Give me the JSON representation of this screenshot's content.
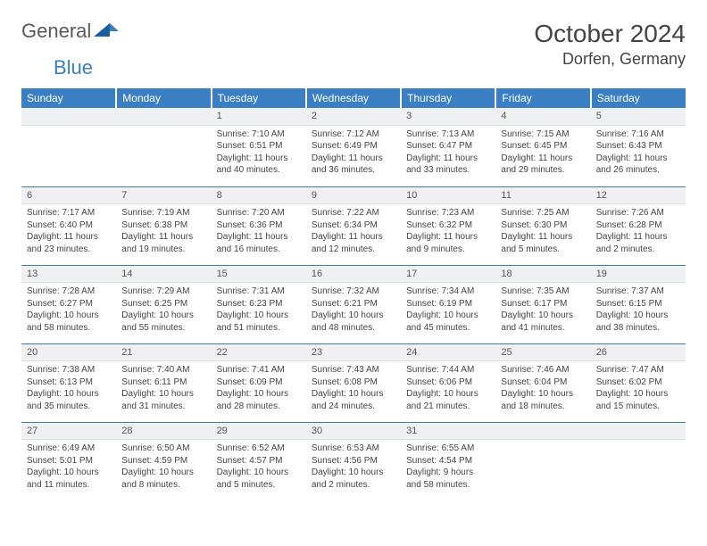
{
  "brand": {
    "part1": "General",
    "part2": "Blue"
  },
  "header": {
    "title": "October 2024",
    "location": "Dorfen, Germany"
  },
  "style": {
    "accent": "#3a7fc4",
    "header_bg": "#3a7fc4",
    "header_text": "#ffffff",
    "daynum_bg": "#eef0f2",
    "body_text": "#444444",
    "page_bg": "#ffffff",
    "title_fontsize": 28,
    "location_fontsize": 18,
    "th_fontsize": 12,
    "cell_fontsize": 10
  },
  "calendar": {
    "columns": [
      "Sunday",
      "Monday",
      "Tuesday",
      "Wednesday",
      "Thursday",
      "Friday",
      "Saturday"
    ],
    "weeks": [
      [
        {
          "day": "",
          "lines": []
        },
        {
          "day": "",
          "lines": []
        },
        {
          "day": "1",
          "lines": [
            "Sunrise: 7:10 AM",
            "Sunset: 6:51 PM",
            "Daylight: 11 hours and 40 minutes."
          ]
        },
        {
          "day": "2",
          "lines": [
            "Sunrise: 7:12 AM",
            "Sunset: 6:49 PM",
            "Daylight: 11 hours and 36 minutes."
          ]
        },
        {
          "day": "3",
          "lines": [
            "Sunrise: 7:13 AM",
            "Sunset: 6:47 PM",
            "Daylight: 11 hours and 33 minutes."
          ]
        },
        {
          "day": "4",
          "lines": [
            "Sunrise: 7:15 AM",
            "Sunset: 6:45 PM",
            "Daylight: 11 hours and 29 minutes."
          ]
        },
        {
          "day": "5",
          "lines": [
            "Sunrise: 7:16 AM",
            "Sunset: 6:43 PM",
            "Daylight: 11 hours and 26 minutes."
          ]
        }
      ],
      [
        {
          "day": "6",
          "lines": [
            "Sunrise: 7:17 AM",
            "Sunset: 6:40 PM",
            "Daylight: 11 hours and 23 minutes."
          ]
        },
        {
          "day": "7",
          "lines": [
            "Sunrise: 7:19 AM",
            "Sunset: 6:38 PM",
            "Daylight: 11 hours and 19 minutes."
          ]
        },
        {
          "day": "8",
          "lines": [
            "Sunrise: 7:20 AM",
            "Sunset: 6:36 PM",
            "Daylight: 11 hours and 16 minutes."
          ]
        },
        {
          "day": "9",
          "lines": [
            "Sunrise: 7:22 AM",
            "Sunset: 6:34 PM",
            "Daylight: 11 hours and 12 minutes."
          ]
        },
        {
          "day": "10",
          "lines": [
            "Sunrise: 7:23 AM",
            "Sunset: 6:32 PM",
            "Daylight: 11 hours and 9 minutes."
          ]
        },
        {
          "day": "11",
          "lines": [
            "Sunrise: 7:25 AM",
            "Sunset: 6:30 PM",
            "Daylight: 11 hours and 5 minutes."
          ]
        },
        {
          "day": "12",
          "lines": [
            "Sunrise: 7:26 AM",
            "Sunset: 6:28 PM",
            "Daylight: 11 hours and 2 minutes."
          ]
        }
      ],
      [
        {
          "day": "13",
          "lines": [
            "Sunrise: 7:28 AM",
            "Sunset: 6:27 PM",
            "Daylight: 10 hours and 58 minutes."
          ]
        },
        {
          "day": "14",
          "lines": [
            "Sunrise: 7:29 AM",
            "Sunset: 6:25 PM",
            "Daylight: 10 hours and 55 minutes."
          ]
        },
        {
          "day": "15",
          "lines": [
            "Sunrise: 7:31 AM",
            "Sunset: 6:23 PM",
            "Daylight: 10 hours and 51 minutes."
          ]
        },
        {
          "day": "16",
          "lines": [
            "Sunrise: 7:32 AM",
            "Sunset: 6:21 PM",
            "Daylight: 10 hours and 48 minutes."
          ]
        },
        {
          "day": "17",
          "lines": [
            "Sunrise: 7:34 AM",
            "Sunset: 6:19 PM",
            "Daylight: 10 hours and 45 minutes."
          ]
        },
        {
          "day": "18",
          "lines": [
            "Sunrise: 7:35 AM",
            "Sunset: 6:17 PM",
            "Daylight: 10 hours and 41 minutes."
          ]
        },
        {
          "day": "19",
          "lines": [
            "Sunrise: 7:37 AM",
            "Sunset: 6:15 PM",
            "Daylight: 10 hours and 38 minutes."
          ]
        }
      ],
      [
        {
          "day": "20",
          "lines": [
            "Sunrise: 7:38 AM",
            "Sunset: 6:13 PM",
            "Daylight: 10 hours and 35 minutes."
          ]
        },
        {
          "day": "21",
          "lines": [
            "Sunrise: 7:40 AM",
            "Sunset: 6:11 PM",
            "Daylight: 10 hours and 31 minutes."
          ]
        },
        {
          "day": "22",
          "lines": [
            "Sunrise: 7:41 AM",
            "Sunset: 6:09 PM",
            "Daylight: 10 hours and 28 minutes."
          ]
        },
        {
          "day": "23",
          "lines": [
            "Sunrise: 7:43 AM",
            "Sunset: 6:08 PM",
            "Daylight: 10 hours and 24 minutes."
          ]
        },
        {
          "day": "24",
          "lines": [
            "Sunrise: 7:44 AM",
            "Sunset: 6:06 PM",
            "Daylight: 10 hours and 21 minutes."
          ]
        },
        {
          "day": "25",
          "lines": [
            "Sunrise: 7:46 AM",
            "Sunset: 6:04 PM",
            "Daylight: 10 hours and 18 minutes."
          ]
        },
        {
          "day": "26",
          "lines": [
            "Sunrise: 7:47 AM",
            "Sunset: 6:02 PM",
            "Daylight: 10 hours and 15 minutes."
          ]
        }
      ],
      [
        {
          "day": "27",
          "lines": [
            "Sunrise: 6:49 AM",
            "Sunset: 5:01 PM",
            "Daylight: 10 hours and 11 minutes."
          ]
        },
        {
          "day": "28",
          "lines": [
            "Sunrise: 6:50 AM",
            "Sunset: 4:59 PM",
            "Daylight: 10 hours and 8 minutes."
          ]
        },
        {
          "day": "29",
          "lines": [
            "Sunrise: 6:52 AM",
            "Sunset: 4:57 PM",
            "Daylight: 10 hours and 5 minutes."
          ]
        },
        {
          "day": "30",
          "lines": [
            "Sunrise: 6:53 AM",
            "Sunset: 4:56 PM",
            "Daylight: 10 hours and 2 minutes."
          ]
        },
        {
          "day": "31",
          "lines": [
            "Sunrise: 6:55 AM",
            "Sunset: 4:54 PM",
            "Daylight: 9 hours and 58 minutes."
          ]
        },
        {
          "day": "",
          "lines": []
        },
        {
          "day": "",
          "lines": []
        }
      ]
    ]
  }
}
